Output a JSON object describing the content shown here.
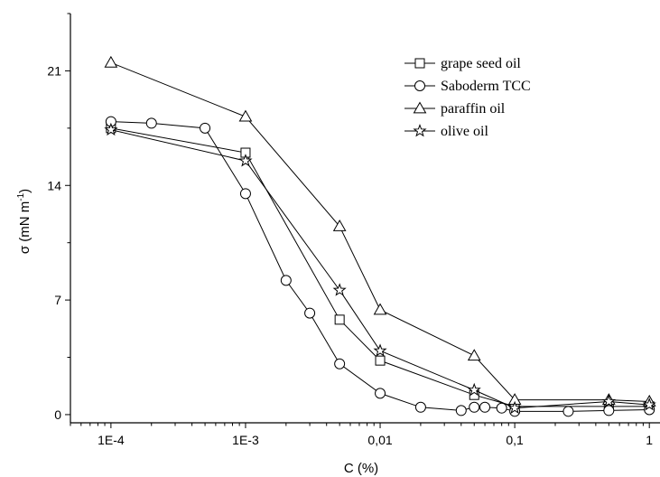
{
  "chart_data": {
    "type": "line",
    "xlabel": "C (%)",
    "ylabel_main": "σ (mN m",
    "ylabel_sup": "-1",
    "ylabel_close": ")",
    "x_scale": "log",
    "xlim": [
      5e-05,
      1.2
    ],
    "ylim": [
      -0.5,
      24.5
    ],
    "x_ticks": [
      {
        "value": 0.0001,
        "label": "1E-4"
      },
      {
        "value": 0.001,
        "label": "1E-3"
      },
      {
        "value": 0.01,
        "label": "0,01"
      },
      {
        "value": 0.1,
        "label": "0,1"
      },
      {
        "value": 1,
        "label": "1"
      }
    ],
    "y_ticks": [
      {
        "value": 0,
        "label": "0"
      },
      {
        "value": 7,
        "label": "7"
      },
      {
        "value": 14,
        "label": "14"
      },
      {
        "value": 21,
        "label": "21"
      }
    ],
    "legend_position": "top-right",
    "series": [
      {
        "name": "grape seed oil",
        "marker": "square",
        "points": [
          [
            0.0001,
            17.5
          ],
          [
            0.001,
            16.0
          ],
          [
            0.005,
            5.8
          ],
          [
            0.01,
            3.3
          ],
          [
            0.05,
            1.2
          ],
          [
            0.1,
            0.5
          ],
          [
            0.5,
            0.5
          ],
          [
            1,
            0.5
          ]
        ]
      },
      {
        "name": "Saboderm TCC",
        "marker": "circle",
        "points": [
          [
            0.0001,
            17.9
          ],
          [
            0.0002,
            17.8
          ],
          [
            0.0005,
            17.5
          ],
          [
            0.001,
            13.5
          ],
          [
            0.002,
            8.2
          ],
          [
            0.003,
            6.2
          ],
          [
            0.005,
            3.1
          ],
          [
            0.01,
            1.3
          ],
          [
            0.02,
            0.45
          ],
          [
            0.04,
            0.25
          ],
          [
            0.05,
            0.45
          ],
          [
            0.06,
            0.45
          ],
          [
            0.08,
            0.4
          ],
          [
            0.1,
            0.2
          ],
          [
            0.25,
            0.2
          ],
          [
            0.5,
            0.25
          ],
          [
            1,
            0.3
          ]
        ]
      },
      {
        "name": "paraffin oil",
        "marker": "triangle",
        "points": [
          [
            0.0001,
            21.5
          ],
          [
            0.001,
            18.2
          ],
          [
            0.005,
            11.5
          ],
          [
            0.01,
            6.4
          ],
          [
            0.05,
            3.6
          ],
          [
            0.1,
            0.9
          ],
          [
            0.5,
            0.9
          ],
          [
            1,
            0.8
          ]
        ]
      },
      {
        "name": "olive oil",
        "marker": "star",
        "points": [
          [
            0.0001,
            17.4
          ],
          [
            0.001,
            15.5
          ],
          [
            0.005,
            7.6
          ],
          [
            0.01,
            3.9
          ],
          [
            0.05,
            1.5
          ],
          [
            0.1,
            0.4
          ],
          [
            0.5,
            0.8
          ],
          [
            1,
            0.6
          ]
        ]
      }
    ]
  }
}
